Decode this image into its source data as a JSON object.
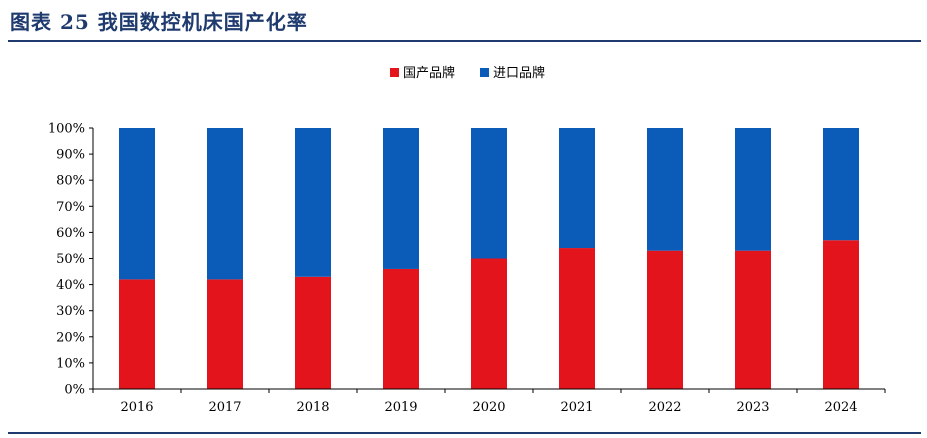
{
  "header": {
    "title": "图表 25   我国数控机床国产化率"
  },
  "colors": {
    "domestic": "#e3141c",
    "imported": "#0a5cb8",
    "title": "#1f3a6e",
    "axis": "#000000"
  },
  "chart_data": {
    "type": "bar",
    "stacked": true,
    "percent": true,
    "categories": [
      "2016",
      "2017",
      "2018",
      "2019",
      "2020",
      "2021",
      "2022",
      "2023",
      "2024"
    ],
    "series": [
      {
        "name": "国产品牌",
        "color": "#e3141c",
        "values": [
          42,
          42,
          43,
          46,
          50,
          54,
          53,
          53,
          57
        ]
      },
      {
        "name": "进口品牌",
        "color": "#0a5cb8",
        "values": [
          58,
          58,
          57,
          54,
          50,
          46,
          47,
          47,
          43
        ]
      }
    ],
    "ylim": [
      0,
      100
    ],
    "yticks": [
      "0%",
      "10%",
      "20%",
      "30%",
      "40%",
      "50%",
      "60%",
      "70%",
      "80%",
      "90%",
      "100%"
    ],
    "grid": false,
    "legend": "top-center"
  }
}
